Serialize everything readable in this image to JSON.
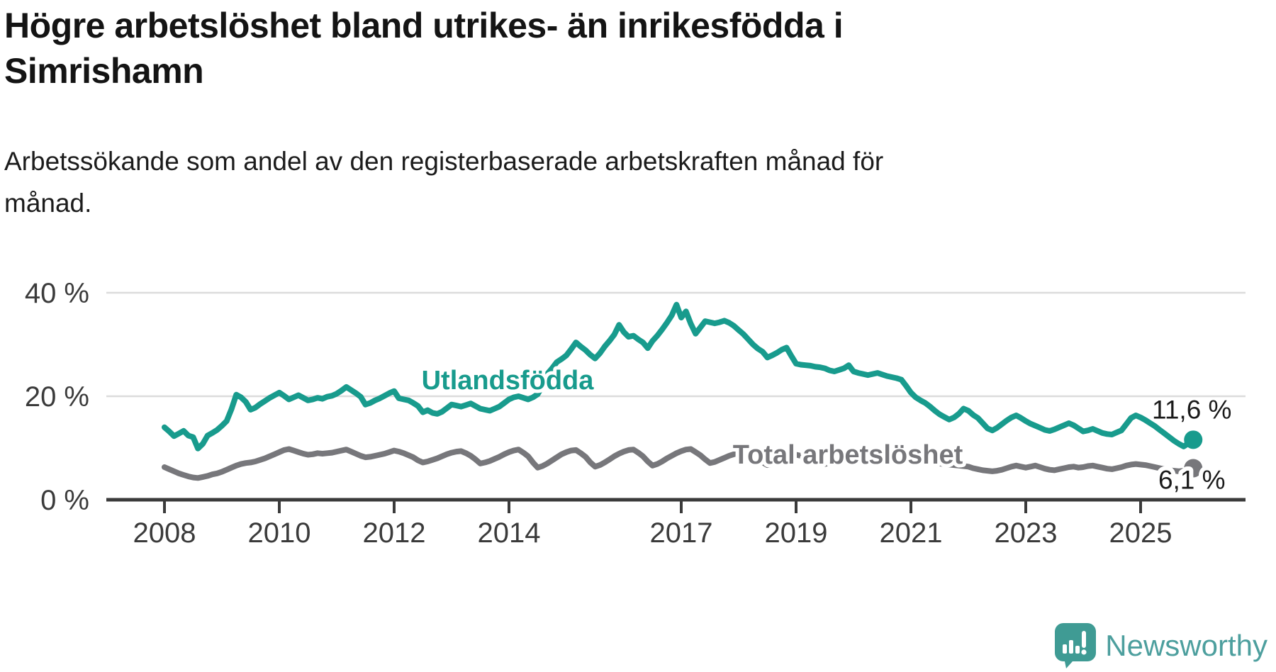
{
  "title": "Högre arbetslöshet bland utrikes- än inrikesfödda i\nSimrishamn",
  "subtitle": "Arbetssökande som andel av den registerbaserade arbetskraften månad för\nmånad.",
  "colors": {
    "foreign_born": "#189b8d",
    "total": "#77777b",
    "grid": "#dcdcdc",
    "axis": "#3b3b3b",
    "tick_text": "#3b3b3b",
    "value_text": "#1a1a1a",
    "logo_bubble": "#3f9b94",
    "logo_text": "#4d9f9e"
  },
  "chart_data": {
    "type": "line",
    "x_start_year": 2008,
    "points_per_year": 12,
    "xlabel": "",
    "ylabel": "",
    "ylim": [
      0,
      40
    ],
    "grid": "horizontal",
    "yticks": [
      {
        "value": 0,
        "label": "0 %"
      },
      {
        "value": 20,
        "label": "20 %"
      },
      {
        "value": 40,
        "label": "40 %"
      }
    ],
    "xticks": [
      {
        "year": 2008,
        "label": "2008"
      },
      {
        "year": 2010,
        "label": "2010"
      },
      {
        "year": 2012,
        "label": "2012"
      },
      {
        "year": 2014,
        "label": "2014"
      },
      {
        "year": 2017,
        "label": "2017"
      },
      {
        "year": 2019,
        "label": "2019"
      },
      {
        "year": 2021,
        "label": "2021"
      },
      {
        "year": 2023,
        "label": "2023"
      },
      {
        "year": 2025,
        "label": "2025"
      }
    ],
    "series": [
      {
        "name": "Utlandsfödda",
        "end_label": "11,6 %",
        "values": [
          14.0,
          13.2,
          12.3,
          12.8,
          13.3,
          12.4,
          12.1,
          9.9,
          10.8,
          12.4,
          12.9,
          13.5,
          14.3,
          15.2,
          17.5,
          20.3,
          19.8,
          18.9,
          17.4,
          17.8,
          18.5,
          19.1,
          19.7,
          20.2,
          20.7,
          20.1,
          19.4,
          19.8,
          20.2,
          19.7,
          19.2,
          19.4,
          19.7,
          19.5,
          19.9,
          20.1,
          20.5,
          21.1,
          21.8,
          21.2,
          20.6,
          19.9,
          18.4,
          18.7,
          19.2,
          19.6,
          20.1,
          20.6,
          21.0,
          19.6,
          19.4,
          19.2,
          18.7,
          18.1,
          16.9,
          17.3,
          16.8,
          16.6,
          17.0,
          17.7,
          18.4,
          18.2,
          18.0,
          18.3,
          18.6,
          18.1,
          17.6,
          17.4,
          17.2,
          17.6,
          18.0,
          18.7,
          19.4,
          19.8,
          20.0,
          19.7,
          19.4,
          19.8,
          20.4,
          22.0,
          24.3,
          25.4,
          26.6,
          27.2,
          27.9,
          29.1,
          30.4,
          29.6,
          28.9,
          28.0,
          27.3,
          28.3,
          29.6,
          30.7,
          31.9,
          33.8,
          32.4,
          31.5,
          31.7,
          31.0,
          30.4,
          29.3,
          30.7,
          31.7,
          32.9,
          34.2,
          35.6,
          37.7,
          35.2,
          36.4,
          34.0,
          32.1,
          33.3,
          34.5,
          34.3,
          34.1,
          34.3,
          34.6,
          34.2,
          33.6,
          32.8,
          32.0,
          31.0,
          30.0,
          29.2,
          28.6,
          27.5,
          27.9,
          28.4,
          29.0,
          29.4,
          27.8,
          26.3,
          26.1,
          26.0,
          25.9,
          25.7,
          25.6,
          25.4,
          25.0,
          24.8,
          25.1,
          25.4,
          26.0,
          24.8,
          24.5,
          24.3,
          24.1,
          24.3,
          24.5,
          24.2,
          23.9,
          23.7,
          23.5,
          23.2,
          22.0,
          20.7,
          19.8,
          19.2,
          18.7,
          18.0,
          17.2,
          16.5,
          16.0,
          15.5,
          15.9,
          16.6,
          17.6,
          17.2,
          16.4,
          15.8,
          14.8,
          13.8,
          13.4,
          13.9,
          14.6,
          15.3,
          15.9,
          16.3,
          15.8,
          15.2,
          14.7,
          14.3,
          13.9,
          13.5,
          13.3,
          13.6,
          14.0,
          14.4,
          14.8,
          14.4,
          13.8,
          13.2,
          13.4,
          13.7,
          13.3,
          12.9,
          12.7,
          12.6,
          13.0,
          13.4,
          14.6,
          15.8,
          16.3,
          15.9,
          15.4,
          14.8,
          14.2,
          13.5,
          12.8,
          12.1,
          11.4,
          10.8,
          10.3,
          10.9,
          11.6
        ]
      },
      {
        "name": "Total arbetslöshet",
        "end_label": "6,1 %",
        "values": [
          6.3,
          5.9,
          5.5,
          5.1,
          4.8,
          4.5,
          4.3,
          4.2,
          4.4,
          4.6,
          4.9,
          5.1,
          5.4,
          5.8,
          6.2,
          6.6,
          6.9,
          7.1,
          7.2,
          7.4,
          7.7,
          8.0,
          8.4,
          8.8,
          9.2,
          9.6,
          9.8,
          9.5,
          9.2,
          8.9,
          8.7,
          8.8,
          9.0,
          8.9,
          9.0,
          9.1,
          9.3,
          9.5,
          9.7,
          9.3,
          8.9,
          8.5,
          8.2,
          8.3,
          8.5,
          8.7,
          8.9,
          9.2,
          9.5,
          9.3,
          9.0,
          8.6,
          8.2,
          7.6,
          7.2,
          7.4,
          7.7,
          8.0,
          8.4,
          8.8,
          9.1,
          9.3,
          9.4,
          9.0,
          8.5,
          7.8,
          7.0,
          7.2,
          7.5,
          7.9,
          8.3,
          8.8,
          9.2,
          9.5,
          9.7,
          9.1,
          8.4,
          7.2,
          6.2,
          6.5,
          7.0,
          7.6,
          8.2,
          8.8,
          9.2,
          9.5,
          9.6,
          9.0,
          8.3,
          7.2,
          6.4,
          6.7,
          7.2,
          7.8,
          8.4,
          8.9,
          9.3,
          9.6,
          9.7,
          9.1,
          8.4,
          7.4,
          6.6,
          6.9,
          7.4,
          8.0,
          8.5,
          9.0,
          9.4,
          9.7,
          9.8,
          9.2,
          8.6,
          7.8,
          7.1,
          7.3,
          7.7,
          8.1,
          8.5,
          8.8,
          9.1,
          8.9,
          8.6,
          8.2,
          7.8,
          7.2,
          6.7,
          6.9,
          7.2,
          7.6,
          8.0,
          8.4,
          8.7,
          8.5,
          8.2,
          7.9,
          7.6,
          7.2,
          6.9,
          7.1,
          7.4,
          7.7,
          8.0,
          8.2,
          8.4,
          8.3,
          8.1,
          8.0,
          7.8,
          7.7,
          7.6,
          7.7,
          7.8,
          7.8,
          7.9,
          8.0,
          8.1,
          7.9,
          7.7,
          7.5,
          7.3,
          7.1,
          7.0,
          6.9,
          6.8,
          6.7,
          6.6,
          6.5,
          6.4,
          6.1,
          5.9,
          5.7,
          5.6,
          5.5,
          5.6,
          5.8,
          6.1,
          6.4,
          6.6,
          6.4,
          6.2,
          6.4,
          6.6,
          6.3,
          6.0,
          5.8,
          5.7,
          5.9,
          6.1,
          6.3,
          6.4,
          6.2,
          6.3,
          6.5,
          6.6,
          6.4,
          6.2,
          6.0,
          5.9,
          6.1,
          6.3,
          6.6,
          6.8,
          6.9,
          6.8,
          6.7,
          6.5,
          6.3,
          6.1,
          5.9,
          5.7,
          5.6,
          5.5,
          5.6,
          5.8,
          6.1
        ]
      }
    ]
  },
  "logo": {
    "wordmark": "Newsworthy"
  }
}
